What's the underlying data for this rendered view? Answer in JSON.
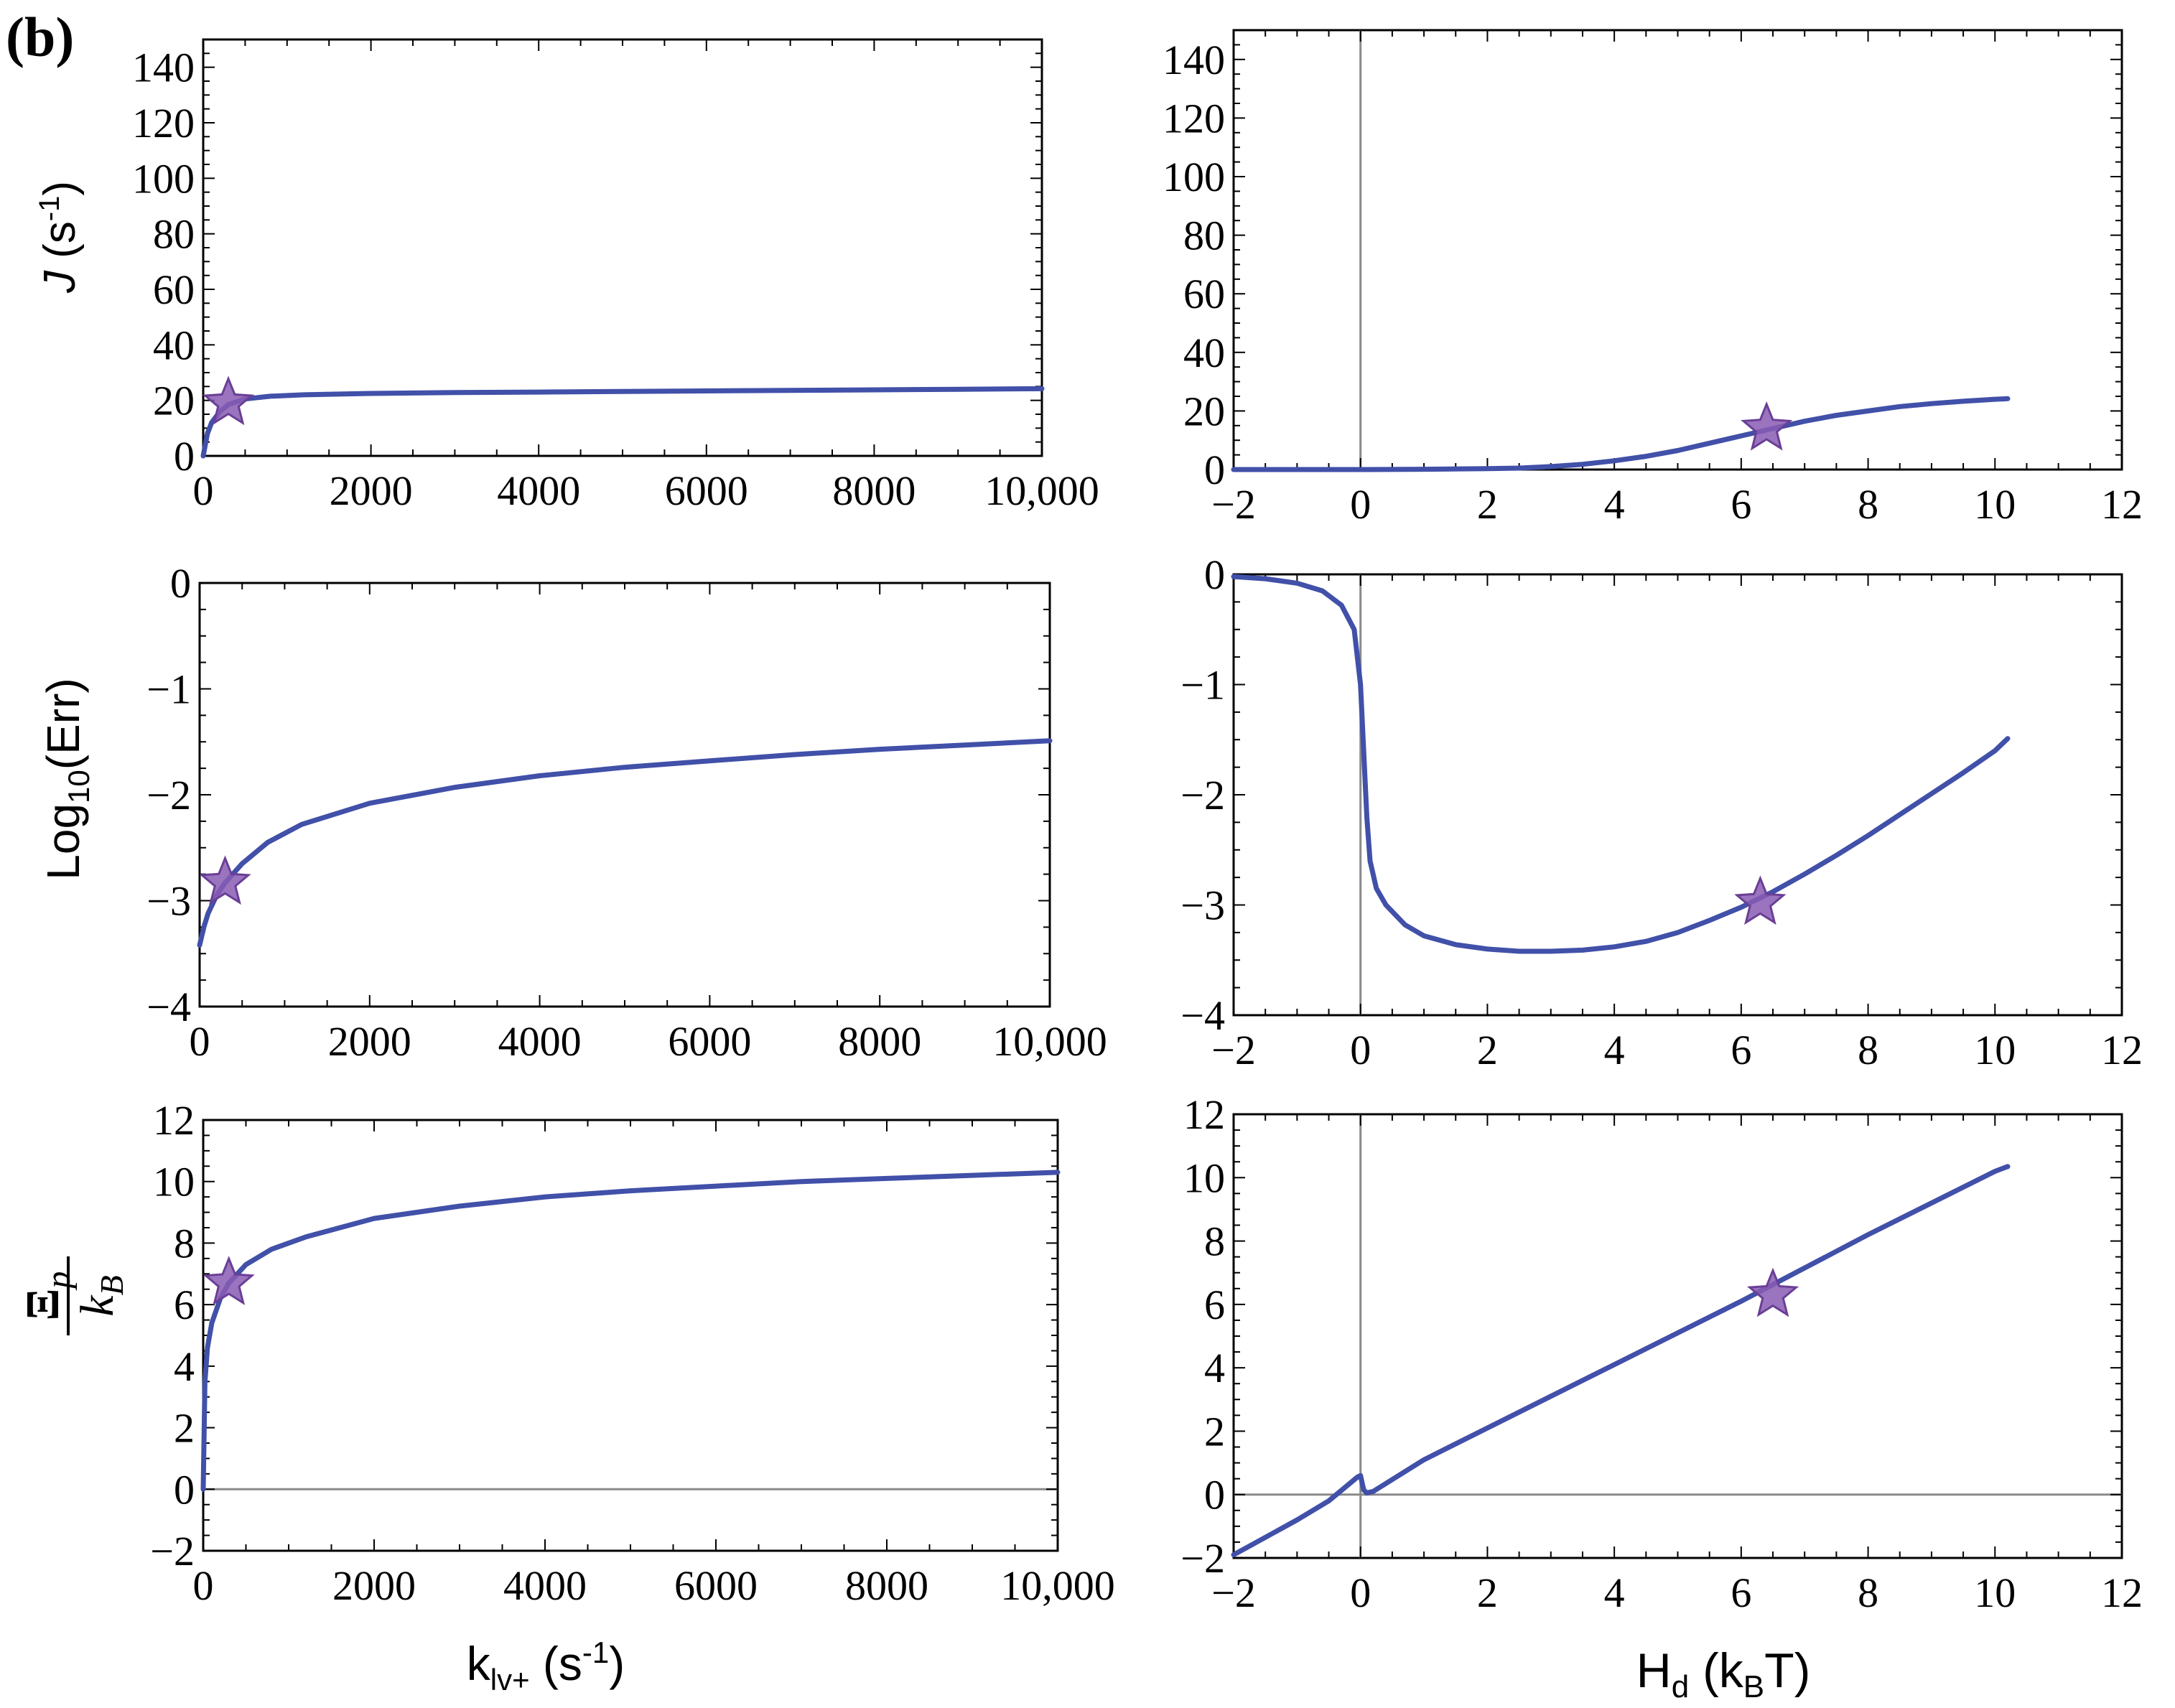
{
  "panel_label": "(b)",
  "colors": {
    "curve": "#4150a8",
    "star_fill": "#8a5cb4",
    "star_stroke": "#6a3f96",
    "axis_zero": "#8a8a8a"
  },
  "labels": {
    "left_row1_ylabel": {
      "italic": "J",
      "text": " (s",
      "sup": "-1",
      "close": ")"
    },
    "left_row2_ylabel": {
      "text": "Log",
      "sub": "10",
      "close": "(Err)"
    },
    "left_row3_ylabel": {
      "num_symbol": "Ξ",
      "num_sub": "p",
      "den": "k",
      "den_sub": "B"
    },
    "left_xlabel": {
      "text": "k",
      "sub": "lv+",
      "mid": " (s",
      "sup": "-1",
      "close": ")"
    },
    "right_xlabel": {
      "text": "H",
      "sub": "d",
      "mid": " (k",
      "sub2": "B",
      "close": "T)"
    }
  },
  "chart_data": [
    {
      "id": "left-top",
      "type": "line",
      "ylabel": "J (s-1)",
      "xlim": [
        0,
        10000
      ],
      "ylim": [
        0,
        150
      ],
      "xticks": [
        0,
        2000,
        4000,
        6000,
        8000,
        10000
      ],
      "xtick_labels": [
        "0",
        "2000",
        "4000",
        "6000",
        "8000",
        "10,000"
      ],
      "yticks": [
        0,
        20,
        40,
        60,
        80,
        100,
        120,
        140
      ],
      "ytick_labels": [
        "0",
        "20",
        "40",
        "60",
        "80",
        "100",
        "120",
        "140"
      ],
      "series": [
        {
          "name": "J",
          "x": [
            0,
            50,
            100,
            200,
            300,
            500,
            800,
            1200,
            2000,
            3000,
            4000,
            5000,
            6000,
            7000,
            8000,
            9000,
            10000
          ],
          "y": [
            0,
            8,
            12,
            16,
            18.5,
            20.5,
            21.5,
            22,
            22.5,
            22.8,
            23,
            23.2,
            23.4,
            23.6,
            23.8,
            24,
            24.2
          ]
        }
      ],
      "marker": {
        "x": 300,
        "y": 19
      },
      "zero_lines": []
    },
    {
      "id": "right-top",
      "type": "line",
      "ylabel": "",
      "xlim": [
        -2,
        12
      ],
      "ylim": [
        0,
        150
      ],
      "xticks": [
        -2,
        0,
        2,
        4,
        6,
        8,
        10,
        12
      ],
      "xtick_labels": [
        "−2",
        "0",
        "2",
        "4",
        "6",
        "8",
        "10",
        "12"
      ],
      "yticks": [
        0,
        20,
        40,
        60,
        80,
        100,
        120,
        140
      ],
      "ytick_labels": [
        "0",
        "20",
        "40",
        "60",
        "80",
        "100",
        "120",
        "140"
      ],
      "series": [
        {
          "name": "J",
          "x": [
            -2,
            -1,
            0,
            1,
            2,
            2.5,
            3,
            3.5,
            4,
            4.5,
            5,
            5.5,
            6,
            6.5,
            7,
            7.5,
            8,
            8.5,
            9,
            9.5,
            10,
            10.2
          ],
          "y": [
            0,
            0,
            0,
            0.1,
            0.3,
            0.5,
            1,
            1.8,
            3,
            4.5,
            6.5,
            9,
            11.5,
            14,
            16.5,
            18.5,
            20,
            21.5,
            22.5,
            23.3,
            24,
            24.2
          ]
        }
      ],
      "marker": {
        "x": 6.4,
        "y": 14
      },
      "zero_lines": [
        "x"
      ]
    },
    {
      "id": "left-mid",
      "type": "line",
      "ylabel": "Log10(Err)",
      "xlim": [
        0,
        10000
      ],
      "ylim": [
        -4,
        0
      ],
      "xticks": [
        0,
        2000,
        4000,
        6000,
        8000,
        10000
      ],
      "xtick_labels": [
        "0",
        "2000",
        "4000",
        "6000",
        "8000",
        "10,000"
      ],
      "yticks": [
        -4,
        -3,
        -2,
        -1,
        0
      ],
      "ytick_labels": [
        "−4",
        "−3",
        "−2",
        "−1",
        "0"
      ],
      "series": [
        {
          "name": "Log10(Err)",
          "x": [
            0,
            50,
            100,
            200,
            300,
            500,
            800,
            1200,
            2000,
            3000,
            4000,
            5000,
            6000,
            7000,
            8000,
            9000,
            10000
          ],
          "y": [
            -3.42,
            -3.25,
            -3.12,
            -2.95,
            -2.83,
            -2.65,
            -2.45,
            -2.28,
            -2.08,
            -1.93,
            -1.82,
            -1.74,
            -1.68,
            -1.62,
            -1.57,
            -1.53,
            -1.49
          ]
        }
      ],
      "marker": {
        "x": 300,
        "y": -2.83
      },
      "zero_lines": []
    },
    {
      "id": "right-mid",
      "type": "line",
      "ylabel": "",
      "xlim": [
        -2,
        12
      ],
      "ylim": [
        -4,
        0
      ],
      "xticks": [
        -2,
        0,
        2,
        4,
        6,
        8,
        10,
        12
      ],
      "xtick_labels": [
        "−2",
        "0",
        "2",
        "4",
        "6",
        "8",
        "10",
        "12"
      ],
      "yticks": [
        -4,
        -3,
        -2,
        -1,
        0
      ],
      "ytick_labels": [
        "−4",
        "−3",
        "−2",
        "−1",
        "0"
      ],
      "series": [
        {
          "name": "Log10(Err)",
          "x": [
            -2,
            -1.5,
            -1,
            -0.6,
            -0.3,
            -0.1,
            0.0,
            0.05,
            0.1,
            0.15,
            0.25,
            0.4,
            0.7,
            1.0,
            1.5,
            2,
            2.5,
            3,
            3.5,
            4,
            4.5,
            5,
            5.5,
            6,
            6.5,
            7,
            7.5,
            8,
            8.5,
            9,
            9.5,
            10,
            10.2
          ],
          "y": [
            -0.02,
            -0.04,
            -0.08,
            -0.15,
            -0.28,
            -0.5,
            -1.0,
            -1.6,
            -2.2,
            -2.6,
            -2.85,
            -3.0,
            -3.18,
            -3.28,
            -3.36,
            -3.4,
            -3.42,
            -3.42,
            -3.41,
            -3.38,
            -3.33,
            -3.25,
            -3.14,
            -3.02,
            -2.88,
            -2.72,
            -2.55,
            -2.37,
            -2.18,
            -1.99,
            -1.8,
            -1.6,
            -1.49
          ]
        }
      ],
      "marker": {
        "x": 6.3,
        "y": -2.98
      },
      "zero_lines": [
        "x"
      ]
    },
    {
      "id": "left-bot",
      "type": "line",
      "ylabel": "Ξp / kB",
      "xlabel": "klv+ (s-1)",
      "xlim": [
        0,
        10000
      ],
      "ylim": [
        -2,
        12
      ],
      "xticks": [
        0,
        2000,
        4000,
        6000,
        8000,
        10000
      ],
      "xtick_labels": [
        "0",
        "2000",
        "4000",
        "6000",
        "8000",
        "10,000"
      ],
      "yticks": [
        -2,
        0,
        2,
        4,
        6,
        8,
        10,
        12
      ],
      "ytick_labels": [
        "−2",
        "0",
        "2",
        "4",
        "6",
        "8",
        "10",
        "12"
      ],
      "series": [
        {
          "name": "Xi_p/kB",
          "x": [
            0,
            20,
            50,
            100,
            200,
            300,
            500,
            800,
            1200,
            2000,
            3000,
            4000,
            5000,
            6000,
            7000,
            8000,
            9000,
            10000
          ],
          "y": [
            0,
            3.5,
            4.6,
            5.4,
            6.2,
            6.7,
            7.3,
            7.8,
            8.2,
            8.8,
            9.2,
            9.5,
            9.7,
            9.85,
            10.0,
            10.1,
            10.2,
            10.3
          ]
        }
      ],
      "marker": {
        "x": 300,
        "y": 6.7
      },
      "zero_lines": [
        "y"
      ]
    },
    {
      "id": "right-bot",
      "type": "line",
      "ylabel": "",
      "xlabel": "Hd (kBT)",
      "xlim": [
        -2,
        12
      ],
      "ylim": [
        -2,
        12
      ],
      "xticks": [
        -2,
        0,
        2,
        4,
        6,
        8,
        10,
        12
      ],
      "xtick_labels": [
        "−2",
        "0",
        "2",
        "4",
        "6",
        "8",
        "10",
        "12"
      ],
      "yticks": [
        -2,
        0,
        2,
        4,
        6,
        8,
        10,
        12
      ],
      "ytick_labels": [
        "−2",
        "0",
        "2",
        "4",
        "6",
        "8",
        "10",
        "12"
      ],
      "series": [
        {
          "name": "Xi_p/kB",
          "x": [
            -2,
            -1,
            -0.5,
            -0.2,
            -0.05,
            0.0,
            0.05,
            0.1,
            0.2,
            1,
            2,
            4,
            6,
            8,
            10,
            10.2
          ],
          "y": [
            -1.9,
            -0.8,
            -0.2,
            0.3,
            0.55,
            0.6,
            0.15,
            0.05,
            0.1,
            1.1,
            2.1,
            4.1,
            6.1,
            8.2,
            10.2,
            10.35
          ]
        }
      ],
      "marker": {
        "x": 6.5,
        "y": 6.3
      },
      "zero_lines": [
        "x",
        "y"
      ]
    }
  ]
}
